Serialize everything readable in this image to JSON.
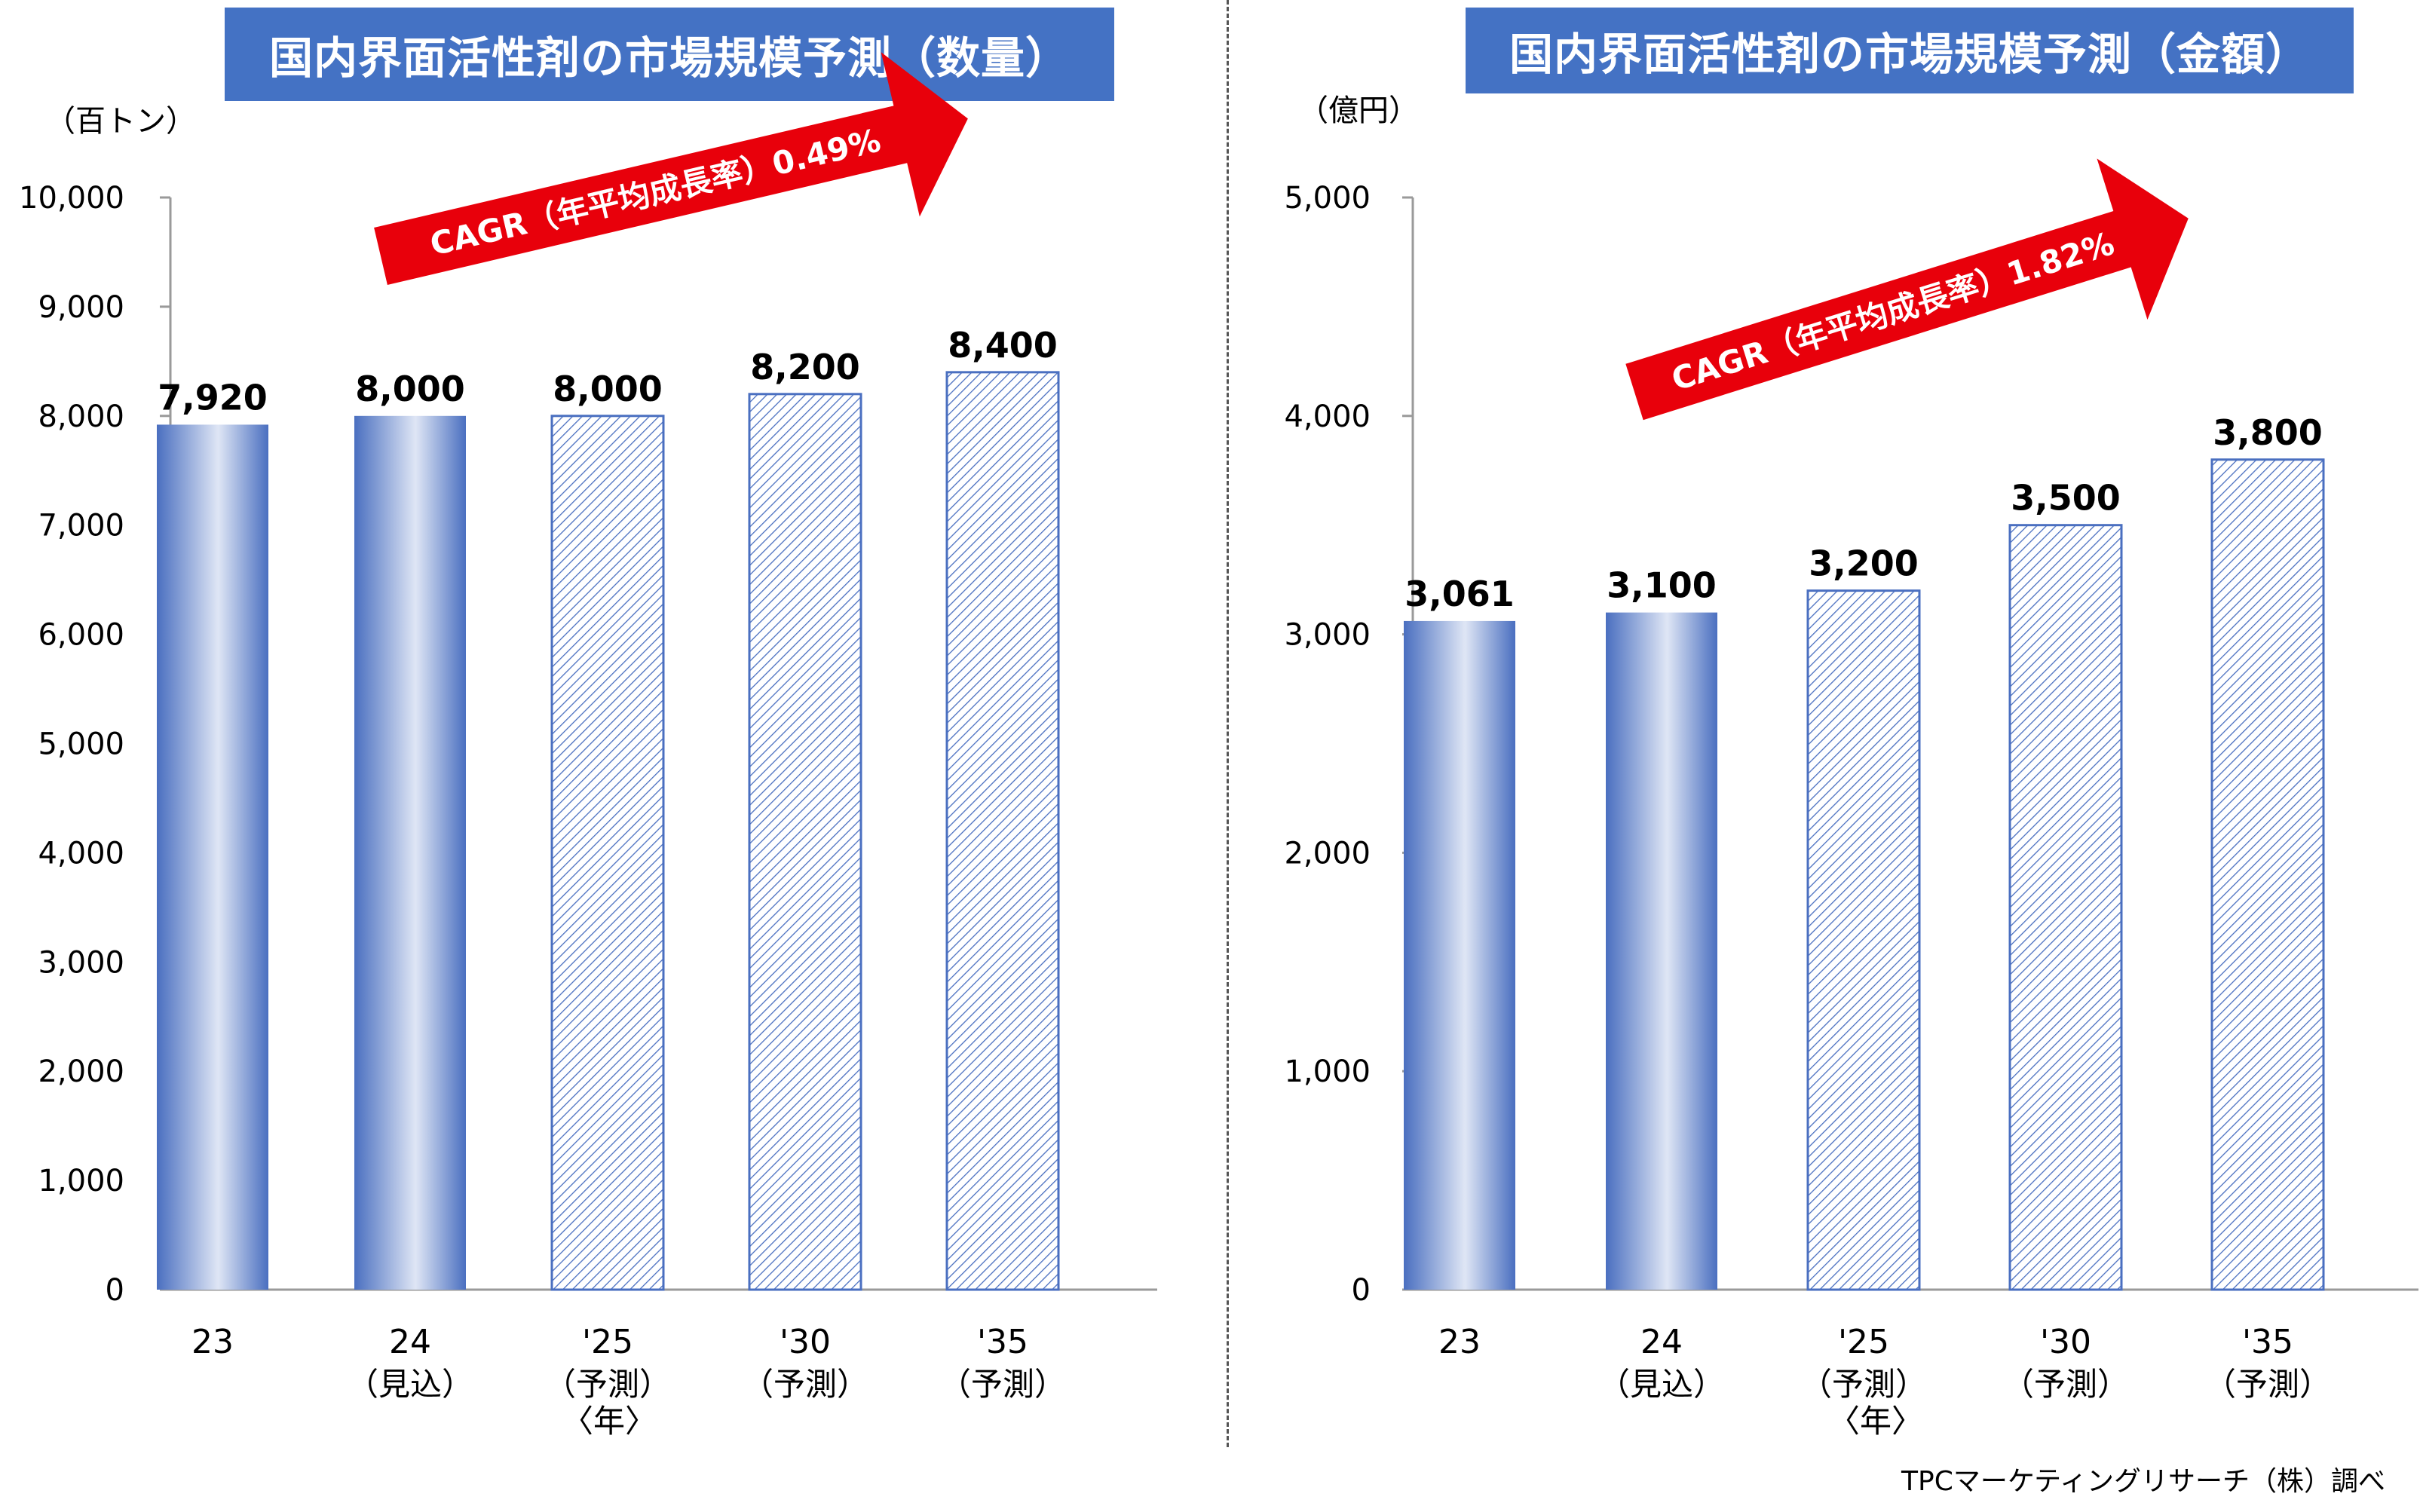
{
  "source": "TPCマーケティングリサーチ（株）調べ",
  "colors": {
    "banner": "#4472c4",
    "bar_actual": "#4a6fc0",
    "bar_forecast_stroke": "#4a6fc0",
    "arrow": "#e8000b"
  },
  "chart_data": [
    {
      "type": "bar",
      "title": "国内界面活性剤の市場規模予測（数量）",
      "ylabel": "（百トン）",
      "xunit": "〈年〉",
      "ylim": [
        0,
        10000
      ],
      "yticks": [
        "0",
        "1,000",
        "2,000",
        "3,000",
        "4,000",
        "5,000",
        "6,000",
        "7,000",
        "8,000",
        "9,000",
        "10,000"
      ],
      "categories": [
        "23",
        "24",
        "'25",
        "'30",
        "'35"
      ],
      "category_notes": [
        "",
        "（見込）",
        "（予測）",
        "（予測）",
        "（予測）"
      ],
      "values": [
        7920,
        8000,
        8000,
        8200,
        8400
      ],
      "value_labels": [
        "7,920",
        "8,000",
        "8,000",
        "8,200",
        "8,400"
      ],
      "forecast": [
        false,
        false,
        true,
        true,
        true
      ],
      "annotation": "CAGR（年平均成長率）0.49%"
    },
    {
      "type": "bar",
      "title": "国内界面活性剤の市場規模予測（金額）",
      "ylabel": "（億円）",
      "xunit": "〈年〉",
      "ylim": [
        0,
        5000
      ],
      "yticks": [
        "0",
        "1,000",
        "2,000",
        "3,000",
        "4,000",
        "5,000"
      ],
      "categories": [
        "23",
        "24",
        "'25",
        "'30",
        "'35"
      ],
      "category_notes": [
        "",
        "（見込）",
        "（予測）",
        "（予測）",
        "（予測）"
      ],
      "values": [
        3061,
        3100,
        3200,
        3500,
        3800
      ],
      "value_labels": [
        "3,061",
        "3,100",
        "3,200",
        "3,500",
        "3,800"
      ],
      "forecast": [
        false,
        false,
        true,
        true,
        true
      ],
      "annotation": "CAGR（年平均成長率）1.82%"
    }
  ]
}
